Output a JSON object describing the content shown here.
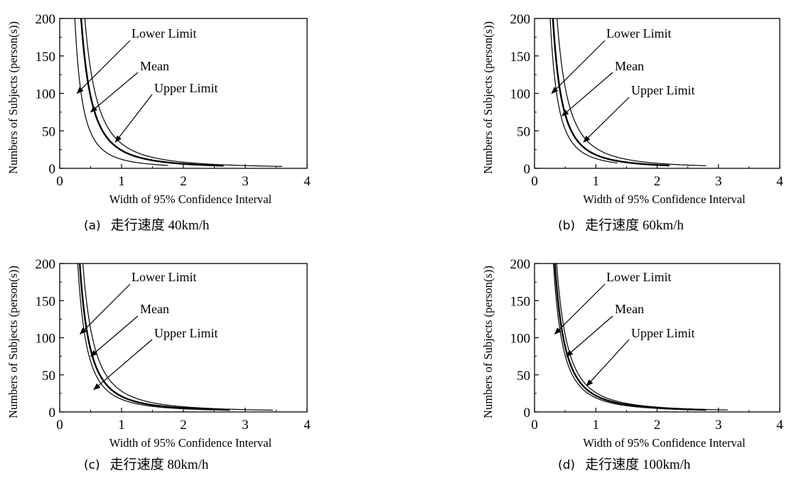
{
  "chart_data": [
    {
      "type": "line",
      "xlabel": "Width of 95% Confidence Interval",
      "ylabel": "Numbers of Subjects (person(s))",
      "xlim": [
        0,
        4
      ],
      "ylim": [
        0,
        200
      ],
      "xticks": [
        "0",
        "1",
        "2",
        "3",
        "4"
      ],
      "yticks": [
        "0",
        "50",
        "100",
        "150",
        "200"
      ],
      "annotations": [
        {
          "text": "Lower Limit",
          "points_to": {
            "x": 0.28,
            "y": 100
          }
        },
        {
          "text": "Mean",
          "points_to": {
            "x": 0.5,
            "y": 75
          }
        },
        {
          "text": "Upper Limit",
          "points_to": {
            "x": 0.9,
            "y": 35
          }
        }
      ],
      "series": [
        {
          "k": 12.0,
          "x_max": 1.75,
          "stroke": 1.2
        },
        {
          "k": 24.0,
          "x_max": 2.65,
          "stroke": 2.4
        },
        {
          "k": 33.0,
          "x_max": 3.6,
          "stroke": 1.2
        }
      ],
      "caption_tag": "(a)",
      "caption": "走行速度 40km/h"
    },
    {
      "type": "line",
      "xlabel": "Width of 95% Confidence Interval",
      "ylabel": "Numbers of Subjects (person(s))",
      "xlim": [
        0,
        4
      ],
      "ylim": [
        0,
        200
      ],
      "xticks": [
        "0",
        "1",
        "2",
        "3",
        "4"
      ],
      "yticks": [
        "0",
        "50",
        "100",
        "150",
        "200"
      ],
      "annotations": [
        {
          "text": "Lower Limit",
          "points_to": {
            "x": 0.28,
            "y": 100
          }
        },
        {
          "text": "Mean",
          "points_to": {
            "x": 0.45,
            "y": 70
          }
        },
        {
          "text": "Upper Limit",
          "points_to": {
            "x": 0.8,
            "y": 35
          }
        }
      ],
      "series": [
        {
          "k": 13.0,
          "x_max": 1.35,
          "stroke": 1.2
        },
        {
          "k": 18.0,
          "x_max": 2.2,
          "stroke": 2.4
        },
        {
          "k": 27.0,
          "x_max": 2.8,
          "stroke": 1.2
        }
      ],
      "caption_tag": "(b)",
      "caption": "走行速度 60km/h"
    },
    {
      "type": "line",
      "xlabel": "Width of 95% Confidence Interval",
      "ylabel": "Numbers of Subjects (person(s))",
      "xlim": [
        0,
        4
      ],
      "ylim": [
        0,
        200
      ],
      "xticks": [
        "0",
        "1",
        "2",
        "3",
        "4"
      ],
      "yticks": [
        "0",
        "50",
        "100",
        "150",
        "200"
      ],
      "annotations": [
        {
          "text": "Lower Limit",
          "points_to": {
            "x": 0.33,
            "y": 105
          }
        },
        {
          "text": "Mean",
          "points_to": {
            "x": 0.5,
            "y": 75
          }
        },
        {
          "text": "Upper Limit",
          "points_to": {
            "x": 0.55,
            "y": 30
          }
        }
      ],
      "series": [
        {
          "k": 17.0,
          "x_max": 2.5,
          "stroke": 1.2
        },
        {
          "k": 21.0,
          "x_max": 2.75,
          "stroke": 2.4
        },
        {
          "k": 28.0,
          "x_max": 3.45,
          "stroke": 1.2
        }
      ],
      "caption_tag": "(c)",
      "caption": "走行速度 80km/h"
    },
    {
      "type": "line",
      "xlabel": "Width of 95% Confidence Interval",
      "ylabel": "Numbers of Subjects (person(s))",
      "xlim": [
        0,
        4
      ],
      "ylim": [
        0,
        200
      ],
      "xticks": [
        "0",
        "1",
        "2",
        "3",
        "4"
      ],
      "yticks": [
        "0",
        "50",
        "100",
        "150",
        "200"
      ],
      "annotations": [
        {
          "text": "Lower Limit",
          "points_to": {
            "x": 0.33,
            "y": 105
          }
        },
        {
          "text": "Mean",
          "points_to": {
            "x": 0.52,
            "y": 75
          }
        },
        {
          "text": "Upper Limit",
          "points_to": {
            "x": 0.85,
            "y": 35
          }
        }
      ],
      "series": [
        {
          "k": 19.0,
          "x_max": 2.75,
          "stroke": 1.2
        },
        {
          "k": 22.0,
          "x_max": 2.8,
          "stroke": 2.4
        },
        {
          "k": 26.0,
          "x_max": 3.15,
          "stroke": 1.2
        }
      ],
      "caption_tag": "(d)",
      "caption": "走行速度 100km/h"
    }
  ]
}
